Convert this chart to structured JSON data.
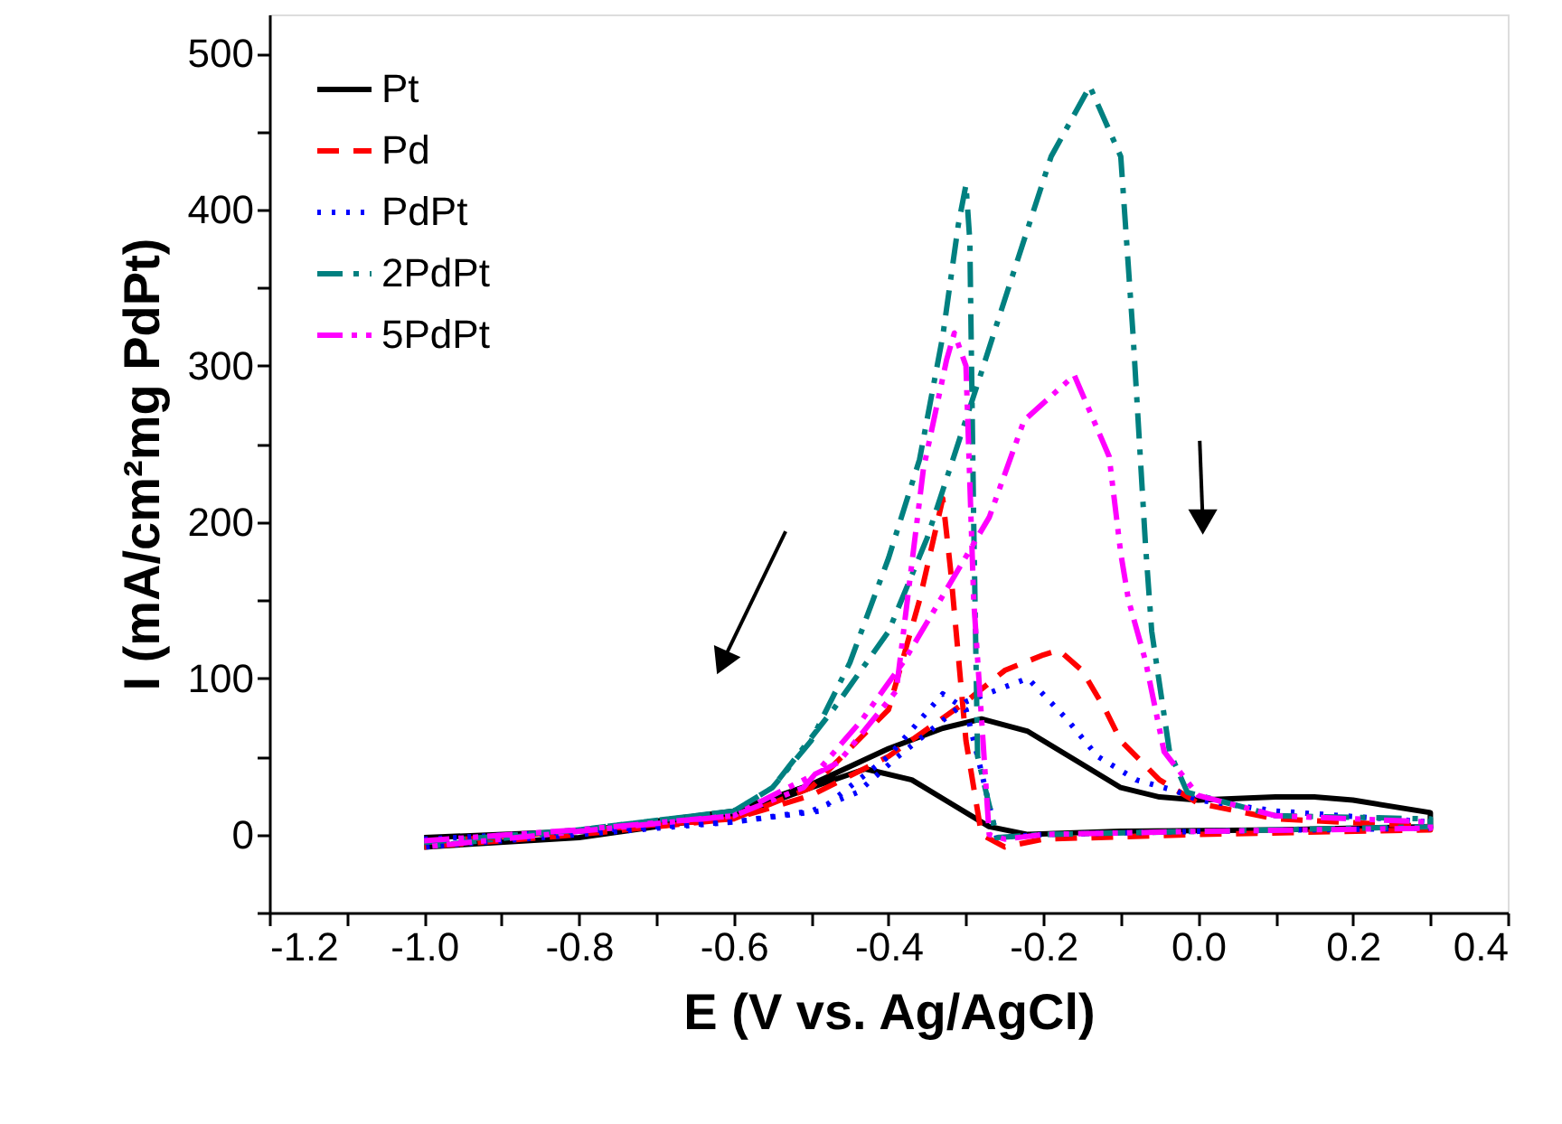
{
  "chart_data": {
    "type": "line",
    "xlabel": "E (V vs. Ag/AgCl)",
    "ylabel": "I (mA/cm²mg PdPt)",
    "xlim": [
      -1.2,
      0.4
    ],
    "ylim": [
      -50,
      525
    ],
    "xticks": [
      -1.2,
      {
        "value": -1.1,
        "label": null
      },
      {
        "value": -1.0,
        "label": "-1.0"
      },
      {
        "value": -0.9,
        "label": null
      },
      -0.8,
      {
        "value": -0.7,
        "label": null
      },
      -0.6,
      {
        "value": -0.5,
        "label": null
      },
      -0.4,
      {
        "value": -0.3,
        "label": null
      },
      -0.2,
      {
        "value": -0.1,
        "label": null
      },
      {
        "value": 0.0,
        "label": "0.0"
      },
      {
        "value": 0.1,
        "label": null
      },
      0.2,
      {
        "value": 0.3,
        "label": null
      },
      0.4
    ],
    "yticks": [
      {
        "value": -50,
        "label": null
      },
      0,
      {
        "value": 50,
        "label": null
      },
      100,
      {
        "value": 150,
        "label": null
      },
      200,
      {
        "value": 250,
        "label": null
      },
      300,
      {
        "value": 350,
        "label": null
      },
      400,
      {
        "value": 450,
        "label": null
      },
      500
    ],
    "legend": "top left",
    "grid": false,
    "marker": "none",
    "series": [
      {
        "name": "Pt",
        "color": "#000000",
        "line_style": "solid",
        "x": [
          -1.0,
          -0.8,
          -0.6,
          -0.5,
          -0.4,
          -0.33,
          -0.28,
          -0.22,
          -0.15,
          -0.1,
          -0.05,
          0.0,
          0.1,
          0.15,
          0.2,
          0.3,
          0.3,
          0.1,
          -0.1,
          -0.22,
          -0.27,
          -0.32,
          -0.37,
          -0.43,
          -0.5,
          -0.6,
          -0.8,
          -1.0
        ],
        "values": [
          -2,
          2,
          15,
          32,
          55,
          68,
          74,
          66,
          45,
          30,
          24,
          22,
          24,
          24,
          22,
          14,
          5,
          3,
          2,
          0,
          5,
          20,
          35,
          42,
          30,
          12,
          -2,
          -8
        ]
      },
      {
        "name": "Pd",
        "color": "#ff0000",
        "line_style": "dashed",
        "x": [
          -1.0,
          -0.6,
          -0.5,
          -0.4,
          -0.3,
          -0.25,
          -0.2,
          -0.18,
          -0.15,
          -0.12,
          -0.1,
          -0.05,
          0.0,
          0.1,
          0.3,
          0.3,
          0.0,
          -0.2,
          -0.25,
          -0.28,
          -0.3,
          -0.32,
          -0.33,
          -0.36,
          -0.4,
          -0.5,
          -0.6,
          -0.8,
          -1.0
        ],
        "values": [
          -5,
          10,
          25,
          50,
          85,
          105,
          115,
          118,
          105,
          80,
          60,
          35,
          20,
          10,
          5,
          3,
          0,
          -3,
          -8,
          0,
          60,
          170,
          215,
          150,
          80,
          30,
          10,
          0,
          -8
        ]
      },
      {
        "name": "PdPt",
        "color": "#0000ff",
        "line_style": "dotted",
        "x": [
          -1.0,
          -0.8,
          -0.6,
          -0.5,
          -0.44,
          -0.39,
          -0.3,
          -0.22,
          -0.17,
          -0.13,
          -0.08,
          -0.03,
          0.0,
          0.1,
          0.3,
          0.3,
          0.0,
          -0.2,
          -0.26,
          -0.28,
          -0.3,
          -0.33,
          -0.4,
          -0.49,
          -0.6,
          -0.8,
          -1.0
        ],
        "values": [
          -3,
          2,
          8,
          15,
          27,
          49,
          85,
          100,
          74,
          50,
          35,
          28,
          22,
          15,
          8,
          4,
          2,
          0,
          -2,
          40,
          80,
          90,
          50,
          15,
          8,
          0,
          -8
        ]
      },
      {
        "name": "2PdPt",
        "color": "#008080",
        "line_style": "dashdot",
        "x": [
          -1.0,
          -0.8,
          -0.6,
          -0.55,
          -0.47,
          -0.4,
          -0.35,
          -0.28,
          -0.26,
          -0.19,
          -0.14,
          -0.1,
          -0.084,
          -0.068,
          -0.06,
          -0.037,
          -0.014,
          0.1,
          0.3,
          0.3,
          0.0,
          -0.2,
          -0.26,
          -0.285,
          -0.29,
          -0.295,
          -0.3,
          -0.31,
          -0.33,
          -0.36,
          -0.4,
          -0.45,
          -0.5,
          -0.55,
          -0.6,
          -0.8,
          -1.0
        ],
        "values": [
          -5,
          3,
          15,
          30,
          81,
          130,
          190,
          296,
          327,
          434,
          479,
          434,
          319,
          185,
          130,
          53,
          27,
          12,
          10,
          5,
          2,
          0,
          -2,
          50,
          200,
          380,
          416,
          390,
          319,
          240,
          177,
          110,
          60,
          30,
          15,
          3,
          -8
        ]
      },
      {
        "name": "5PdPt",
        "color": "#ff00ff",
        "line_style": "dashdotdot",
        "x": [
          -1.0,
          -0.8,
          -0.6,
          -0.51,
          -0.435,
          -0.38,
          -0.27,
          -0.225,
          -0.16,
          -0.115,
          -0.1,
          -0.09,
          -0.068,
          -0.044,
          0.0,
          0.1,
          0.3,
          0.3,
          0.0,
          -0.2,
          -0.25,
          -0.27,
          -0.29,
          -0.3,
          -0.315,
          -0.325,
          -0.355,
          -0.39,
          -0.465,
          -0.55,
          -0.6,
          -0.8,
          -1.0
        ],
        "values": [
          -4,
          3,
          12,
          30,
          73,
          111,
          203,
          265,
          294,
          242,
          180,
          150,
          111,
          53,
          25,
          12,
          8,
          4,
          2,
          0,
          -3,
          0,
          150,
          300,
          321,
          304,
          234,
          92,
          46,
          25,
          12,
          2,
          -8
        ]
      }
    ]
  }
}
